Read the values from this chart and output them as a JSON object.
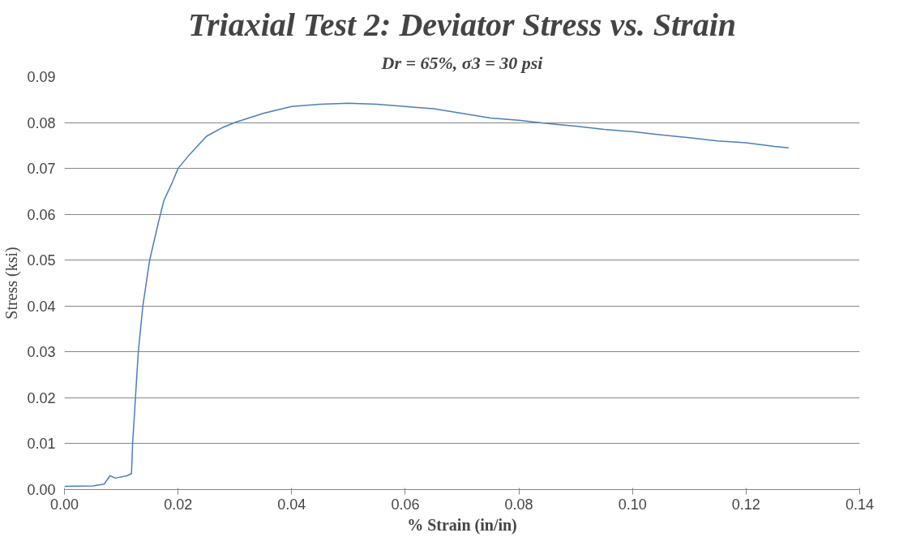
{
  "chart_data": {
    "type": "line",
    "title": "Triaxial Test 2: Deviator Stress vs. Strain",
    "subtitle": "Dr = 65%, σ3 = 30 psi",
    "xlabel": "% Strain (in/in)",
    "ylabel": "Stress (ksi)",
    "x": [
      0.0,
      0.005,
      0.007,
      0.008,
      0.009,
      0.011,
      0.0118,
      0.012,
      0.0125,
      0.013,
      0.0138,
      0.015,
      0.0165,
      0.0175,
      0.019,
      0.02,
      0.022,
      0.025,
      0.028,
      0.03,
      0.035,
      0.04,
      0.045,
      0.05,
      0.055,
      0.06,
      0.065,
      0.07,
      0.075,
      0.08,
      0.085,
      0.09,
      0.095,
      0.1,
      0.105,
      0.11,
      0.115,
      0.12,
      0.125,
      0.1275
    ],
    "series": [
      {
        "color": "#4a7ebb",
        "values": [
          0.0007,
          0.0008,
          0.0012,
          0.003,
          0.0025,
          0.003,
          0.0035,
          0.01,
          0.02,
          0.03,
          0.04,
          0.05,
          0.058,
          0.063,
          0.067,
          0.07,
          0.073,
          0.077,
          0.079,
          0.08,
          0.082,
          0.0835,
          0.084,
          0.0842,
          0.084,
          0.0835,
          0.083,
          0.082,
          0.081,
          0.0805,
          0.0798,
          0.0792,
          0.0785,
          0.078,
          0.0773,
          0.0767,
          0.076,
          0.0756,
          0.0748,
          0.0745
        ]
      }
    ],
    "xlim": [
      0,
      0.14
    ],
    "ylim": [
      0,
      0.09
    ],
    "xticks": [
      {
        "value": 0,
        "label": "0.00"
      },
      {
        "value": 0.02,
        "label": "0.02"
      },
      {
        "value": 0.04,
        "label": "0.04"
      },
      {
        "value": 0.06,
        "label": "0.06"
      },
      {
        "value": 0.08,
        "label": "0.08"
      },
      {
        "value": 0.1,
        "label": "0.10"
      },
      {
        "value": 0.12,
        "label": "0.12"
      },
      {
        "value": 0.14,
        "label": "0.14"
      }
    ],
    "yticks": [
      {
        "value": 0,
        "label": "0.00"
      },
      {
        "value": 0.01,
        "label": "0.01"
      },
      {
        "value": 0.02,
        "label": "0.02"
      },
      {
        "value": 0.03,
        "label": "0.03"
      },
      {
        "value": 0.04,
        "label": "0.04"
      },
      {
        "value": 0.05,
        "label": "0.05"
      },
      {
        "value": 0.06,
        "label": "0.06"
      },
      {
        "value": 0.07,
        "label": "0.07"
      },
      {
        "value": 0.08,
        "label": "0.08"
      },
      {
        "value": 0.09,
        "label": "0.09"
      }
    ],
    "grid": "y"
  }
}
